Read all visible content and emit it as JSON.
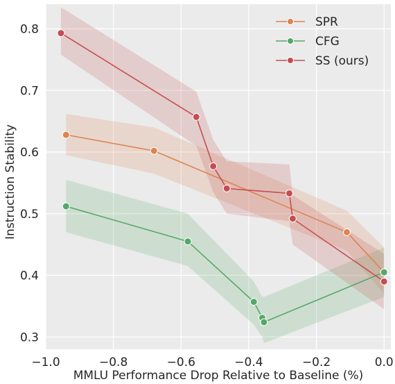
{
  "chart_data": {
    "type": "line",
    "xlabel": "MMLU Performance Drop Relative to Baseline (%)",
    "ylabel": "Instruction Stability",
    "xlim": [
      -1.0,
      0.02
    ],
    "ylim": [
      0.28,
      0.84
    ],
    "xticks": [
      -1.0,
      -0.8,
      -0.6,
      -0.4,
      -0.2,
      0.0
    ],
    "xtick_labels": [
      "−1.0",
      "−0.8",
      "−0.6",
      "−0.4",
      "−0.2",
      "0.0"
    ],
    "yticks": [
      0.3,
      0.4,
      0.5,
      0.6,
      0.7,
      0.8
    ],
    "ytick_labels": [
      "0.3",
      "0.4",
      "0.5",
      "0.6",
      "0.7",
      "0.8"
    ],
    "grid": true,
    "legend_position": "top-right",
    "series": [
      {
        "name": "SPR",
        "color": "#dd8452",
        "x": [
          -0.94,
          -0.68,
          -0.11,
          0.0
        ],
        "y": [
          0.628,
          0.602,
          0.47,
          0.405
        ],
        "lower": [
          0.595,
          0.565,
          0.44,
          0.37
        ],
        "upper": [
          0.662,
          0.64,
          0.505,
          0.445
        ]
      },
      {
        "name": "CFG",
        "color": "#55a868",
        "x": [
          -0.94,
          -0.58,
          -0.385,
          -0.36,
          -0.355,
          0.0
        ],
        "y": [
          0.512,
          0.455,
          0.357,
          0.331,
          0.324,
          0.405
        ],
        "lower": [
          0.47,
          0.415,
          0.32,
          0.3,
          0.29,
          0.365
        ],
        "upper": [
          0.555,
          0.5,
          0.39,
          0.365,
          0.365,
          0.445
        ]
      },
      {
        "name": "SS (ours)",
        "color": "#c44e52",
        "x": [
          -0.955,
          -0.555,
          -0.505,
          -0.465,
          -0.28,
          -0.27,
          0.0
        ],
        "y": [
          0.793,
          0.657,
          0.577,
          0.541,
          0.533,
          0.492,
          0.39
        ],
        "lower": [
          0.758,
          0.61,
          0.535,
          0.5,
          0.488,
          0.45,
          0.345
        ],
        "upper": [
          0.835,
          0.698,
          0.62,
          0.585,
          0.58,
          0.53,
          0.435
        ]
      }
    ]
  }
}
